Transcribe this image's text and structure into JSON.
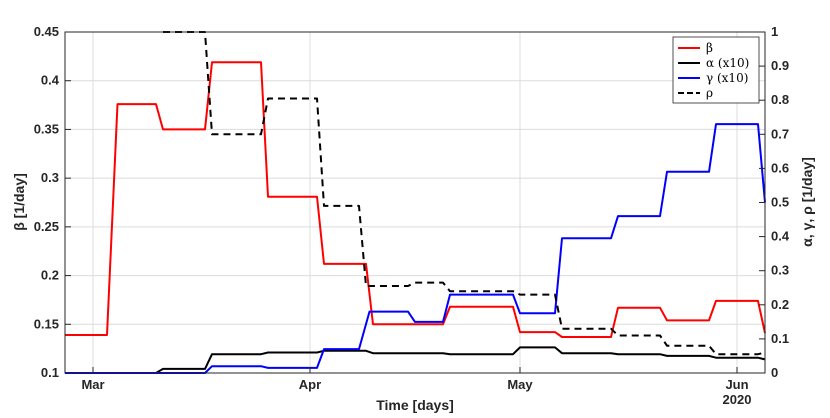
{
  "chart_data": {
    "type": "line",
    "xlabel": "Time [days]",
    "ylabel_left": "β  [1/day]",
    "ylabel_right": "α, γ, ρ [1/day]",
    "x_ticks": [
      "Mar",
      "Apr",
      "May",
      "Jun"
    ],
    "x_tick_sublabel": "2020",
    "x_range_days": [
      0,
      100
    ],
    "x_tick_days": [
      4,
      35,
      65,
      96
    ],
    "ylim_left": [
      0.1,
      0.45
    ],
    "yticks_left": [
      "0.1",
      "0.15",
      "0.2",
      "0.25",
      "0.3",
      "0.35",
      "0.4",
      "0.45"
    ],
    "ylim_right": [
      0,
      1
    ],
    "yticks_right": [
      "0",
      "0.1",
      "0.2",
      "0.3",
      "0.4",
      "0.5",
      "0.6",
      "0.7",
      "0.8",
      "0.9",
      "1"
    ],
    "grid": true,
    "legend_position": "top-right",
    "series": [
      {
        "name": "β",
        "axis": "left",
        "color": "#ff0000",
        "style": "solid",
        "x": [
          0,
          6,
          7.5,
          13,
          14,
          20,
          21,
          28,
          29,
          36,
          37,
          43,
          44,
          54,
          55,
          64,
          65,
          70,
          71,
          78,
          79,
          85,
          86,
          92,
          93,
          99,
          100
        ],
        "y": [
          0.139,
          0.139,
          0.376,
          0.376,
          0.35,
          0.35,
          0.419,
          0.419,
          0.281,
          0.281,
          0.212,
          0.212,
          0.15,
          0.15,
          0.168,
          0.168,
          0.142,
          0.142,
          0.137,
          0.137,
          0.167,
          0.167,
          0.154,
          0.154,
          0.174,
          0.174,
          0.141
        ]
      },
      {
        "name": "α (x10)",
        "axis": "right",
        "color": "#000000",
        "style": "solid",
        "x": [
          0,
          13,
          14,
          20,
          21,
          28,
          29,
          36,
          37,
          43,
          44,
          54,
          55,
          64,
          65,
          70,
          71,
          78,
          79,
          85,
          86,
          92,
          93,
          99,
          100
        ],
        "y": [
          0,
          0,
          0.012,
          0.012,
          0.055,
          0.055,
          0.06,
          0.06,
          0.065,
          0.065,
          0.058,
          0.058,
          0.055,
          0.055,
          0.075,
          0.075,
          0.058,
          0.058,
          0.055,
          0.055,
          0.05,
          0.05,
          0.045,
          0.045,
          0.04
        ]
      },
      {
        "name": "γ (x10)",
        "axis": "right",
        "color": "#0000ff",
        "style": "solid",
        "x": [
          0,
          20,
          21,
          28,
          29,
          36,
          37,
          42,
          43.5,
          49,
          50,
          54,
          55,
          64,
          65,
          70,
          71,
          78,
          79,
          85,
          86,
          92,
          93,
          99,
          100
        ],
        "y": [
          0,
          0,
          0.02,
          0.02,
          0.015,
          0.015,
          0.07,
          0.07,
          0.18,
          0.18,
          0.15,
          0.15,
          0.23,
          0.23,
          0.175,
          0.175,
          0.395,
          0.395,
          0.46,
          0.46,
          0.59,
          0.59,
          0.73,
          0.73,
          0.5
        ]
      },
      {
        "name": "ρ",
        "axis": "right",
        "color": "#000000",
        "style": "dashed",
        "x": [
          14,
          20,
          21,
          28,
          29,
          36,
          37,
          42,
          43,
          49,
          50,
          54,
          55,
          64,
          65,
          70,
          71,
          78,
          79,
          85,
          86,
          92,
          93,
          99,
          100
        ],
        "y": [
          1.0,
          1.0,
          0.7,
          0.7,
          0.805,
          0.805,
          0.49,
          0.49,
          0.255,
          0.255,
          0.265,
          0.265,
          0.24,
          0.24,
          0.23,
          0.23,
          0.13,
          0.13,
          0.11,
          0.11,
          0.08,
          0.08,
          0.055,
          0.055,
          0.06
        ]
      }
    ]
  }
}
